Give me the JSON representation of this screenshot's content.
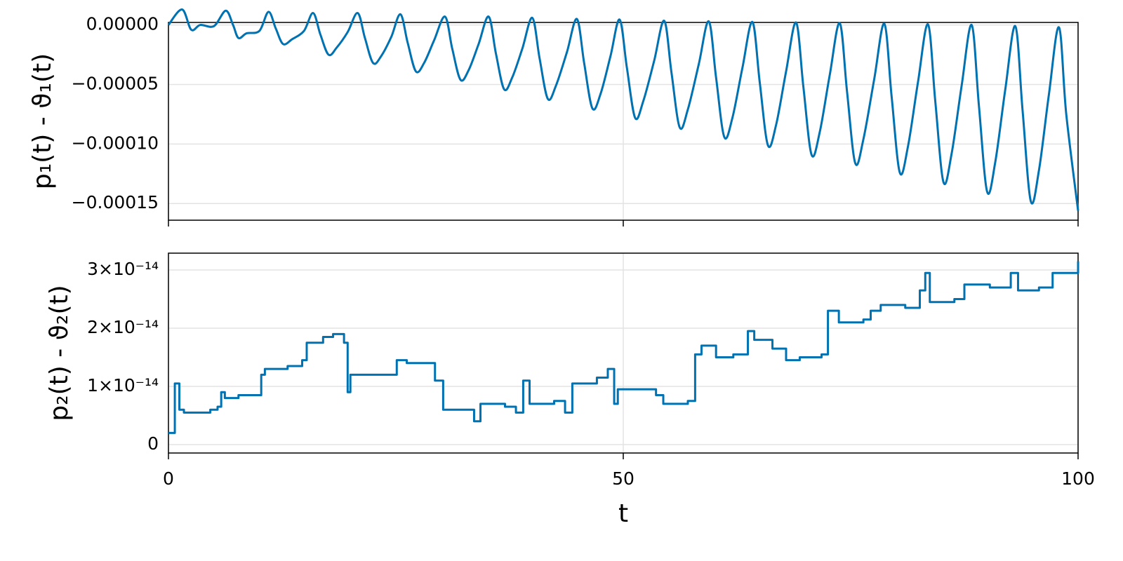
{
  "chart_data": [
    {
      "type": "line",
      "ylabel": "p₁(t) - ϑ₁(t)",
      "color": "#0072b2",
      "grid": true,
      "xlim": [
        0,
        100
      ],
      "xticks": [
        0,
        50,
        100
      ],
      "ylim": [
        -0.000164,
        2.1e-06
      ],
      "yticks": [
        {
          "value": 0,
          "label": "0.00000"
        },
        {
          "value": -5e-05,
          "label": "−0.00005"
        },
        {
          "value": -0.0001,
          "label": "−0.00010"
        },
        {
          "value": -0.00015,
          "label": "−0.00015"
        }
      ],
      "x": [
        0,
        1.5,
        2.5,
        3.5,
        5.0,
        6.3,
        7.1,
        7.7,
        8.6,
        10.0,
        11,
        11.8,
        12.6,
        13.6,
        14.9,
        15.9,
        16.7,
        17.6,
        18.5,
        19.7,
        20.8,
        21.6,
        22.5,
        23.4,
        24.5,
        25.5,
        26.3,
        27.2,
        28.1,
        29.2,
        30.4,
        31.2,
        32.1,
        33.0,
        34.1,
        35.2,
        36.0,
        36.9,
        37.8,
        38.9,
        40.0,
        40.8,
        41.7,
        42.6,
        43.8,
        44.9,
        45.7,
        46.6,
        47.5,
        48.6,
        49.6,
        50.4,
        51.3,
        52.2,
        53.4,
        54.5,
        55.3,
        56.2,
        57.1,
        58.3,
        59.4,
        60.2,
        61.1,
        62.0,
        63.1,
        64.2,
        65.0,
        65.9,
        66.8,
        67.9,
        69.0,
        69.8,
        70.7,
        71.6,
        72.7,
        73.8,
        74.6,
        75.5,
        76.4,
        77.6,
        78.7,
        79.5,
        80.4,
        81.3,
        82.4,
        83.5,
        84.3,
        85.2,
        86.1,
        87.2,
        88.3,
        89.1,
        90.0,
        90.9,
        92.0,
        93.1,
        93.9,
        94.8,
        95.7,
        96.8,
        97.9,
        98.7,
        100
      ],
      "values": [
        0,
        1.3e-05,
        -4e-06,
        0,
        -1e-06,
        1.2e-05,
        0,
        -1.1e-05,
        -7e-06,
        -5e-06,
        1.1e-05,
        -3e-06,
        -1.6e-05,
        -1.2e-05,
        -5e-06,
        1e-05,
        -8e-06,
        -2.5e-05,
        -1.9e-05,
        -6e-06,
        1e-05,
        -1.1e-05,
        -3.2e-05,
        -2.6e-05,
        -1e-05,
        9e-06,
        -1.5e-05,
        -3.9e-05,
        -3.2e-05,
        -1.3e-05,
        7e-06,
        -2e-05,
        -4.6e-05,
        -3.8e-05,
        -1.6e-05,
        7e-06,
        -2.4e-05,
        -5.4e-05,
        -4.4e-05,
        -2e-05,
        6e-06,
        -2.8e-05,
        -6.2e-05,
        -5.1e-05,
        -2.3e-05,
        5e-06,
        -3.2e-05,
        -7e-05,
        -5.8e-05,
        -2.6e-05,
        4.5e-06,
        -3.6e-05,
        -7.8e-05,
        -6.4e-05,
        -3e-05,
        3.5e-06,
        -4e-05,
        -8.6e-05,
        -7.1e-05,
        -3.3e-05,
        3e-06,
        -4.4e-05,
        -9.4e-05,
        -7.8e-05,
        -3.6e-05,
        2.5e-06,
        -4.8e-05,
        -0.000101,
        -8.4e-05,
        -3.9e-05,
        2e-06,
        -5.2e-05,
        -0.000109,
        -9e-05,
        -4.2e-05,
        1.5e-06,
        -5.6e-05,
        -0.000116,
        -9.6e-05,
        -4.5e-05,
        1e-06,
        -6e-05,
        -0.000124,
        -0.000102,
        -4.8e-05,
        5e-07,
        -6.4e-05,
        -0.000132,
        -0.000108,
        -5.1e-05,
        0,
        -6.8e-05,
        -0.00014,
        -0.000115,
        -5.4e-05,
        -1e-06,
        -7.2e-05,
        -0.000148,
        -0.000122,
        -5.8e-05,
        -2e-06,
        -7.5e-05,
        -0.000156
      ]
    },
    {
      "type": "line",
      "ylabel": "p₂(t) - ϑ₂(t)",
      "xlabel": "t",
      "color": "#0072b2",
      "grid": true,
      "xlim": [
        0,
        100
      ],
      "xticks": [
        0,
        50,
        100
      ],
      "ylim": [
        -1.45e-15,
        3.29e-14
      ],
      "yticks": [
        0,
        {
          "value": 1e-14,
          "label": "1×10⁻¹⁴"
        },
        {
          "value": 2e-14,
          "label": "2×10⁻¹⁴"
        },
        {
          "value": 3e-14,
          "label": "3×10⁻¹⁴"
        }
      ],
      "x": [
        0,
        0.7,
        1.2,
        1.7,
        4.6,
        5.4,
        5.8,
        6.2,
        7.7,
        10,
        10.2,
        10.6,
        13.1,
        14.7,
        15.2,
        17,
        18.1,
        19.3,
        19.7,
        20,
        21.6,
        23.9,
        25.1,
        26.2,
        28.5,
        29.3,
        30.2,
        32.4,
        33.6,
        34.3,
        37,
        38.2,
        39,
        39.7,
        42.4,
        43.6,
        44.4,
        47.1,
        48.3,
        49,
        49.4,
        52.5,
        53.6,
        54.4,
        57.1,
        57.9,
        58.6,
        60.2,
        62.1,
        63.7,
        64.4,
        66.4,
        67.9,
        69.4,
        71.8,
        72.5,
        73.7,
        76.4,
        77.2,
        78.3,
        81,
        82.6,
        83.2,
        83.7,
        86.4,
        87.5,
        90.3,
        92,
        92.6,
        93.4,
        95.7,
        97.2,
        100
      ],
      "values": [
        2e-15,
        1.05e-14,
        6e-15,
        5.5e-15,
        6e-15,
        6.5e-15,
        9e-15,
        8e-15,
        8.5e-15,
        8.5e-15,
        1.2e-14,
        1.3e-14,
        1.35e-14,
        1.45e-14,
        1.75e-14,
        1.85e-14,
        1.9e-14,
        1.75e-14,
        9e-15,
        1.2e-14,
        1.2e-14,
        1.2e-14,
        1.45e-14,
        1.4e-14,
        1.4e-14,
        1.1e-14,
        6e-15,
        6e-15,
        4e-15,
        7e-15,
        6.5e-15,
        5.5e-15,
        1.1e-14,
        7e-15,
        7.5e-15,
        5.5e-15,
        1.05e-14,
        1.15e-14,
        1.3e-14,
        7e-15,
        9.5e-15,
        9.5e-15,
        8.5e-15,
        7e-15,
        7.5e-15,
        1.55e-14,
        1.7e-14,
        1.5e-14,
        1.55e-14,
        1.95e-14,
        1.8e-14,
        1.65e-14,
        1.45e-14,
        1.5e-14,
        1.55e-14,
        2.3e-14,
        2.1e-14,
        2.15e-14,
        2.3e-14,
        2.4e-14,
        2.35e-14,
        2.65e-14,
        2.95e-14,
        2.45e-14,
        2.5e-14,
        2.75e-14,
        2.7e-14,
        2.7e-14,
        2.95e-14,
        2.65e-14,
        2.7e-14,
        2.95e-14,
        3.15e-14
      ]
    }
  ]
}
